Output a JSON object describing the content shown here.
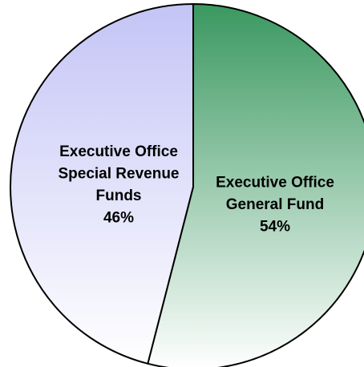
{
  "chart_data": {
    "type": "pie",
    "categories": [
      [
        "Executive Office",
        "General Fund"
      ],
      [
        "Executive Office",
        "Special Revenue",
        "Funds"
      ]
    ],
    "values": [
      54,
      46
    ],
    "value_labels": [
      "54%",
      "46%"
    ],
    "colors": [
      "#3a9860",
      "#c4c4f6"
    ]
  }
}
